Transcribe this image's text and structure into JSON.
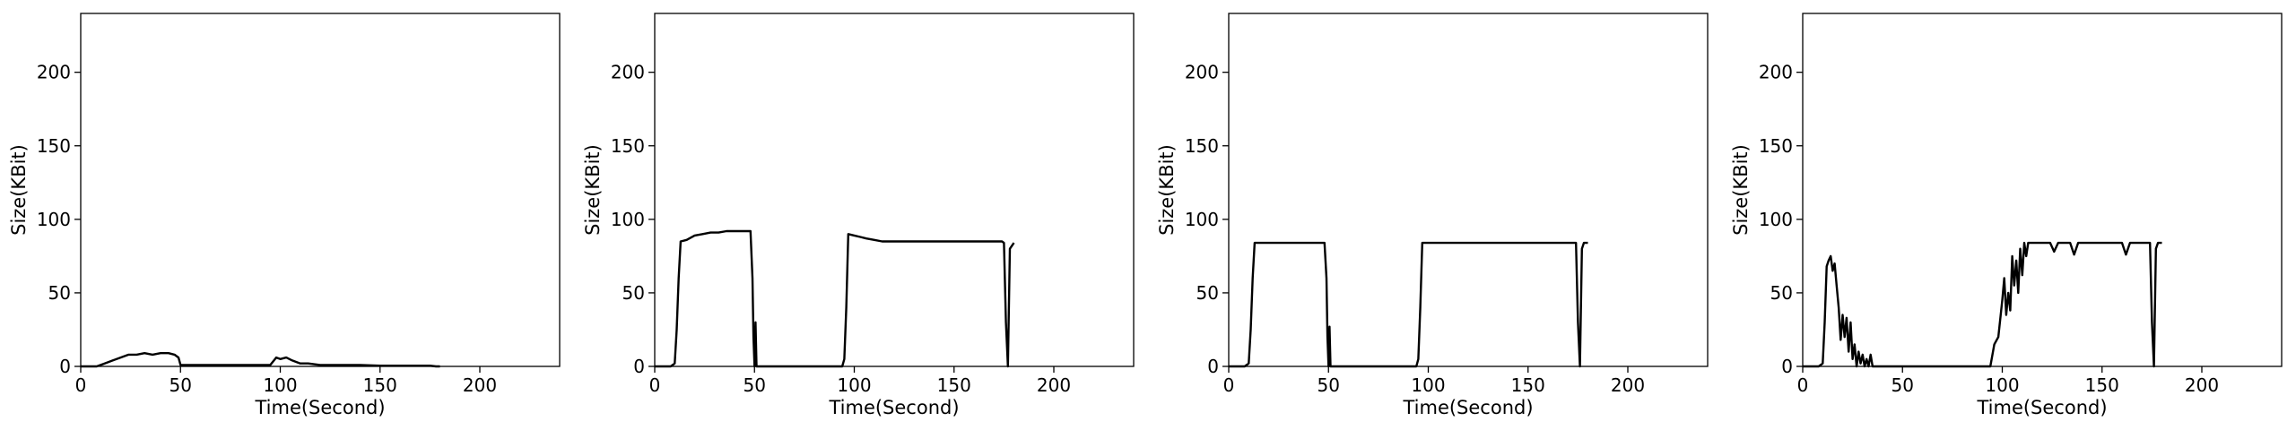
{
  "chart_data": [
    {
      "type": "line",
      "xlabel": "Time(Second)",
      "ylabel": "Size(KBit)",
      "xlim": [
        0,
        240
      ],
      "ylim": [
        0,
        240
      ],
      "xticks": [
        0,
        50,
        100,
        150,
        200
      ],
      "yticks": [
        0,
        50,
        100,
        150,
        200
      ],
      "grid": false,
      "series": [
        {
          "x": [
            0,
            8,
            12,
            16,
            20,
            24,
            28,
            32,
            36,
            40,
            44,
            47,
            49,
            50,
            52,
            60,
            70,
            80,
            90,
            95,
            98,
            100,
            103,
            106,
            110,
            114,
            120,
            130,
            140,
            150,
            160,
            170,
            175,
            178,
            180
          ],
          "values": [
            0,
            0,
            2,
            4,
            6,
            8,
            8,
            9,
            8,
            9,
            9,
            8,
            6,
            1,
            1,
            1,
            1,
            1,
            1,
            1,
            6,
            5,
            6,
            4,
            2,
            2,
            1,
            1,
            1,
            0.5,
            0.5,
            0.5,
            0.5,
            0,
            0
          ]
        }
      ]
    },
    {
      "type": "line",
      "xlabel": "Time(Second)",
      "ylabel": "Size(KBit)",
      "xlim": [
        0,
        240
      ],
      "ylim": [
        0,
        240
      ],
      "xticks": [
        0,
        50,
        100,
        150,
        200
      ],
      "yticks": [
        0,
        50,
        100,
        150,
        200
      ],
      "grid": false,
      "series": [
        {
          "x": [
            0,
            8,
            10,
            11,
            12,
            13,
            16,
            20,
            24,
            28,
            32,
            36,
            40,
            44,
            47,
            48,
            49,
            49.5,
            50,
            50.5,
            51,
            52,
            60,
            70,
            80,
            90,
            94,
            95,
            96,
            97,
            100,
            103,
            106,
            110,
            114,
            120,
            130,
            140,
            150,
            160,
            170,
            174,
            175,
            176,
            177,
            178,
            180
          ],
          "values": [
            0,
            0,
            2,
            25,
            60,
            85,
            86,
            89,
            90,
            91,
            91,
            92,
            92,
            92,
            92,
            92,
            60,
            20,
            0,
            30,
            0,
            0,
            0,
            0,
            0,
            0,
            0,
            5,
            40,
            90,
            89,
            88,
            87,
            86,
            85,
            85,
            85,
            85,
            85,
            85,
            85,
            85,
            84,
            30,
            0,
            80,
            84
          ]
        }
      ]
    },
    {
      "type": "line",
      "xlabel": "Time(Second)",
      "ylabel": "Size(KBit)",
      "xlim": [
        0,
        240
      ],
      "ylim": [
        0,
        240
      ],
      "xticks": [
        0,
        50,
        100,
        150,
        200
      ],
      "yticks": [
        0,
        50,
        100,
        150,
        200
      ],
      "grid": false,
      "series": [
        {
          "x": [
            0,
            8,
            10,
            11,
            12,
            13,
            16,
            20,
            24,
            28,
            32,
            36,
            40,
            44,
            47,
            48,
            49,
            49.5,
            50,
            50.5,
            51,
            52,
            60,
            70,
            80,
            90,
            94,
            95,
            96,
            97,
            100,
            110,
            120,
            130,
            140,
            150,
            160,
            170,
            174,
            175,
            176,
            177,
            178,
            180
          ],
          "values": [
            0,
            0,
            2,
            25,
            60,
            84,
            84,
            84,
            84,
            84,
            84,
            84,
            84,
            84,
            84,
            84,
            60,
            20,
            0,
            27,
            0,
            0,
            0,
            0,
            0,
            0,
            0,
            5,
            40,
            84,
            84,
            84,
            84,
            84,
            84,
            84,
            84,
            84,
            84,
            30,
            0,
            80,
            84,
            84
          ]
        }
      ]
    },
    {
      "type": "line",
      "xlabel": "Time(Second)",
      "ylabel": "Size(KBit)",
      "xlim": [
        0,
        240
      ],
      "ylim": [
        0,
        240
      ],
      "xticks": [
        0,
        50,
        100,
        150,
        200
      ],
      "yticks": [
        0,
        50,
        100,
        150,
        200
      ],
      "grid": false,
      "series": [
        {
          "x": [
            0,
            8,
            10,
            11,
            12,
            13,
            14,
            15,
            16,
            17,
            18,
            19,
            20,
            21,
            22,
            23,
            24,
            25,
            26,
            27,
            28,
            29,
            30,
            31,
            32,
            33,
            34,
            35,
            36,
            40,
            50,
            60,
            70,
            80,
            90,
            94,
            96,
            98,
            100,
            101,
            102,
            103,
            104,
            105,
            106,
            107,
            108,
            109,
            110,
            111,
            112,
            113,
            114,
            116,
            120,
            124,
            126,
            128,
            130,
            134,
            136,
            138,
            140,
            150,
            160,
            162,
            164,
            166,
            168,
            170,
            172,
            174,
            175,
            176,
            177,
            178,
            180
          ],
          "values": [
            0,
            0,
            2,
            30,
            68,
            72,
            75,
            65,
            70,
            55,
            40,
            18,
            35,
            20,
            33,
            10,
            30,
            5,
            15,
            0,
            10,
            2,
            8,
            0,
            5,
            0,
            8,
            0,
            0,
            0,
            0,
            0,
            0,
            0,
            0,
            0,
            15,
            20,
            45,
            60,
            35,
            50,
            38,
            75,
            55,
            72,
            50,
            80,
            62,
            84,
            75,
            84,
            84,
            84,
            84,
            84,
            78,
            84,
            84,
            84,
            76,
            84,
            84,
            84,
            84,
            76,
            84,
            84,
            84,
            84,
            84,
            84,
            30,
            0,
            80,
            84,
            84
          ]
        }
      ]
    }
  ]
}
